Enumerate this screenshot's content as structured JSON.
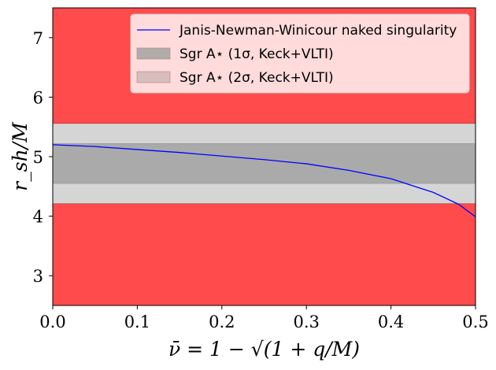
{
  "chart_data": {
    "type": "line",
    "title": "",
    "xlabel": "ν̄ = 1 − √(1 + q/M)",
    "ylabel": "r_sh/M",
    "xlim": [
      0.0,
      0.5
    ],
    "ylim": [
      2.5,
      7.5
    ],
    "x_ticks": [
      0.0,
      0.1,
      0.2,
      0.3,
      0.4,
      0.5
    ],
    "x_tick_labels": [
      "0.0",
      "0.1",
      "0.2",
      "0.3",
      "0.4",
      "0.5"
    ],
    "y_ticks": [
      3,
      4,
      5,
      6,
      7
    ],
    "y_tick_labels": [
      "3",
      "4",
      "5",
      "6",
      "7"
    ],
    "grid": false,
    "legend_position": "top-right",
    "series": [
      {
        "name": "Janis-Newman-Winicour naked singularity",
        "color": "#0000ff",
        "x": [
          0.0,
          0.05,
          0.1,
          0.15,
          0.2,
          0.25,
          0.3,
          0.35,
          0.4,
          0.45,
          0.48,
          0.5
        ],
        "y": [
          5.2,
          5.17,
          5.12,
          5.07,
          5.01,
          4.95,
          4.88,
          4.77,
          4.63,
          4.4,
          4.2,
          3.99
        ]
      }
    ],
    "bands": [
      {
        "name": "Sgr A* (1σ, Keck+VLTI)",
        "ymin": 4.55,
        "ymax": 5.22,
        "color": "#aaaaaa"
      },
      {
        "name": "Sgr A* (2σ, Keck+VLTI)",
        "ymin": 4.21,
        "ymax": 5.56,
        "color": "#d5d5d5"
      }
    ],
    "excluded_color": "#ff4b4b",
    "legend": [
      {
        "label": "Janis-Newman-Winicour naked singularity",
        "kind": "line",
        "color": "#0000ff"
      },
      {
        "label": "Sgr A⋆ (1σ, Keck+VLTI)",
        "kind": "patch",
        "color": "#b3aaaa"
      },
      {
        "label": "Sgr A⋆ (2σ, Keck+VLTI)",
        "kind": "patch",
        "color": "#d9bcbc"
      }
    ]
  }
}
